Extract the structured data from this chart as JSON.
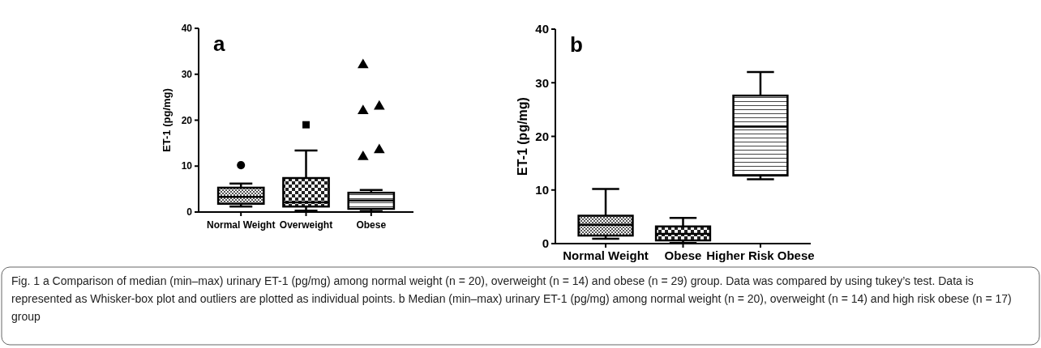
{
  "chart_data": [
    {
      "type": "box",
      "title": "a",
      "ylabel": "ET-1 (pg/mg)",
      "categories": [
        "Normal Weight",
        "Overweight",
        "Obese"
      ],
      "ylim": [
        0,
        40
      ],
      "yticks": [
        0,
        10,
        20,
        30,
        40
      ],
      "boxes": [
        {
          "low": 1.2,
          "q1": 1.8,
          "median": 3.3,
          "q3": 5.3,
          "high": 6.2,
          "outliers": [
            10.2
          ]
        },
        {
          "low": 0.3,
          "q1": 1.2,
          "median": 2.1,
          "q3": 7.4,
          "high": 13.4,
          "outliers": [
            19
          ]
        },
        {
          "low": 0.2,
          "q1": 0.7,
          "median": 2.5,
          "q3": 4.2,
          "high": 4.8,
          "outliers": [
            32,
            23,
            22,
            13.5,
            12
          ]
        }
      ],
      "annotations": [
        "Fig. 1 a Comparison of median (min–max) urinary ET-1 (pg/mg) among normal weight (n = 20), overweight (n = 14) and obese (n = 29) group. Data was compared by using tukey’s test. Data is represented as Whisker-box plot and outliers are plotted as individual points. b Median (min–max) urinary ET-1 (pg/mg) among normal weight (n = 20), overweight (n = 14) and high risk obese (n = 17) group"
      ]
    },
    {
      "type": "box",
      "title": "b",
      "ylabel": "ET-1 (pg/mg)",
      "categories": [
        "Normal Weight",
        "Obese",
        "Higher Risk Obese"
      ],
      "ylim": [
        0,
        40
      ],
      "yticks": [
        0,
        10,
        20,
        30,
        40
      ],
      "boxes": [
        {
          "low": 0.9,
          "q1": 1.5,
          "median": 3.5,
          "q3": 5.2,
          "high": 10.2
        },
        {
          "low": 0.1,
          "q1": 0.6,
          "median": 1.8,
          "q3": 3.2,
          "high": 4.8
        },
        {
          "low": 12,
          "q1": 12.7,
          "median": 21.8,
          "q3": 27.6,
          "high": 32
        }
      ]
    }
  ]
}
